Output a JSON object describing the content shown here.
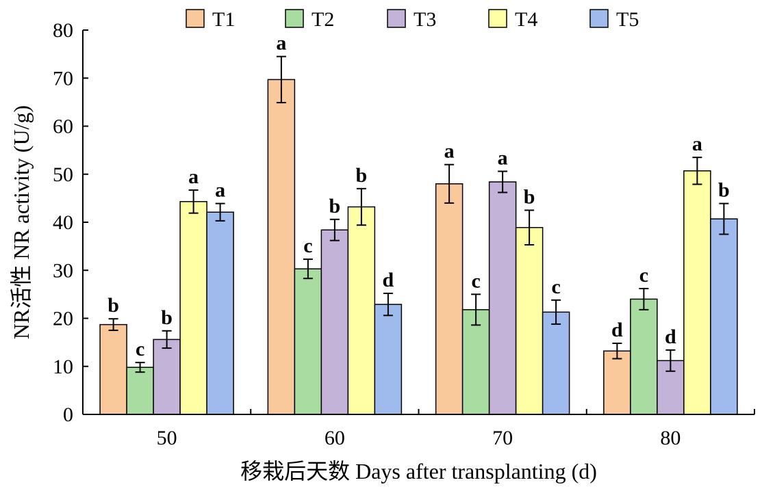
{
  "chart_data": {
    "type": "bar",
    "title": "",
    "xlabel": "移栽后天数 Days after transplanting (d)",
    "ylabel": "NR活性 NR activity (U/g)",
    "ylim": [
      0,
      80
    ],
    "yticks": [
      0,
      10,
      20,
      30,
      40,
      50,
      60,
      70,
      80
    ],
    "categories": [
      "50",
      "60",
      "70",
      "80"
    ],
    "legend_position": "top",
    "grid": false,
    "series": [
      {
        "name": "T1",
        "color": "#f9c89b",
        "values": [
          18.7,
          69.7,
          48.0,
          13.2
        ],
        "errors": [
          1.2,
          4.8,
          4.0,
          1.6
        ],
        "labels": [
          "b",
          "a",
          "a",
          "d"
        ]
      },
      {
        "name": "T2",
        "color": "#a9dca0",
        "values": [
          9.8,
          30.3,
          21.8,
          24.0
        ],
        "errors": [
          1.0,
          2.0,
          3.2,
          2.2
        ],
        "labels": [
          "c",
          "c",
          "c",
          "c"
        ]
      },
      {
        "name": "T3",
        "color": "#c3b3d9",
        "values": [
          15.6,
          38.4,
          48.4,
          11.2
        ],
        "errors": [
          1.8,
          2.2,
          2.2,
          2.2
        ],
        "labels": [
          "b",
          "b",
          "a",
          "d"
        ]
      },
      {
        "name": "T4",
        "color": "#ffffa6",
        "values": [
          44.3,
          43.2,
          38.9,
          50.7
        ],
        "errors": [
          2.4,
          3.8,
          3.6,
          2.8
        ],
        "labels": [
          "a",
          "b",
          "b",
          "a"
        ]
      },
      {
        "name": "T5",
        "color": "#9fbbee",
        "values": [
          42.1,
          22.9,
          21.3,
          40.7
        ],
        "errors": [
          1.8,
          2.3,
          2.5,
          3.2
        ],
        "labels": [
          "a",
          "d",
          "c",
          "b"
        ]
      }
    ]
  }
}
